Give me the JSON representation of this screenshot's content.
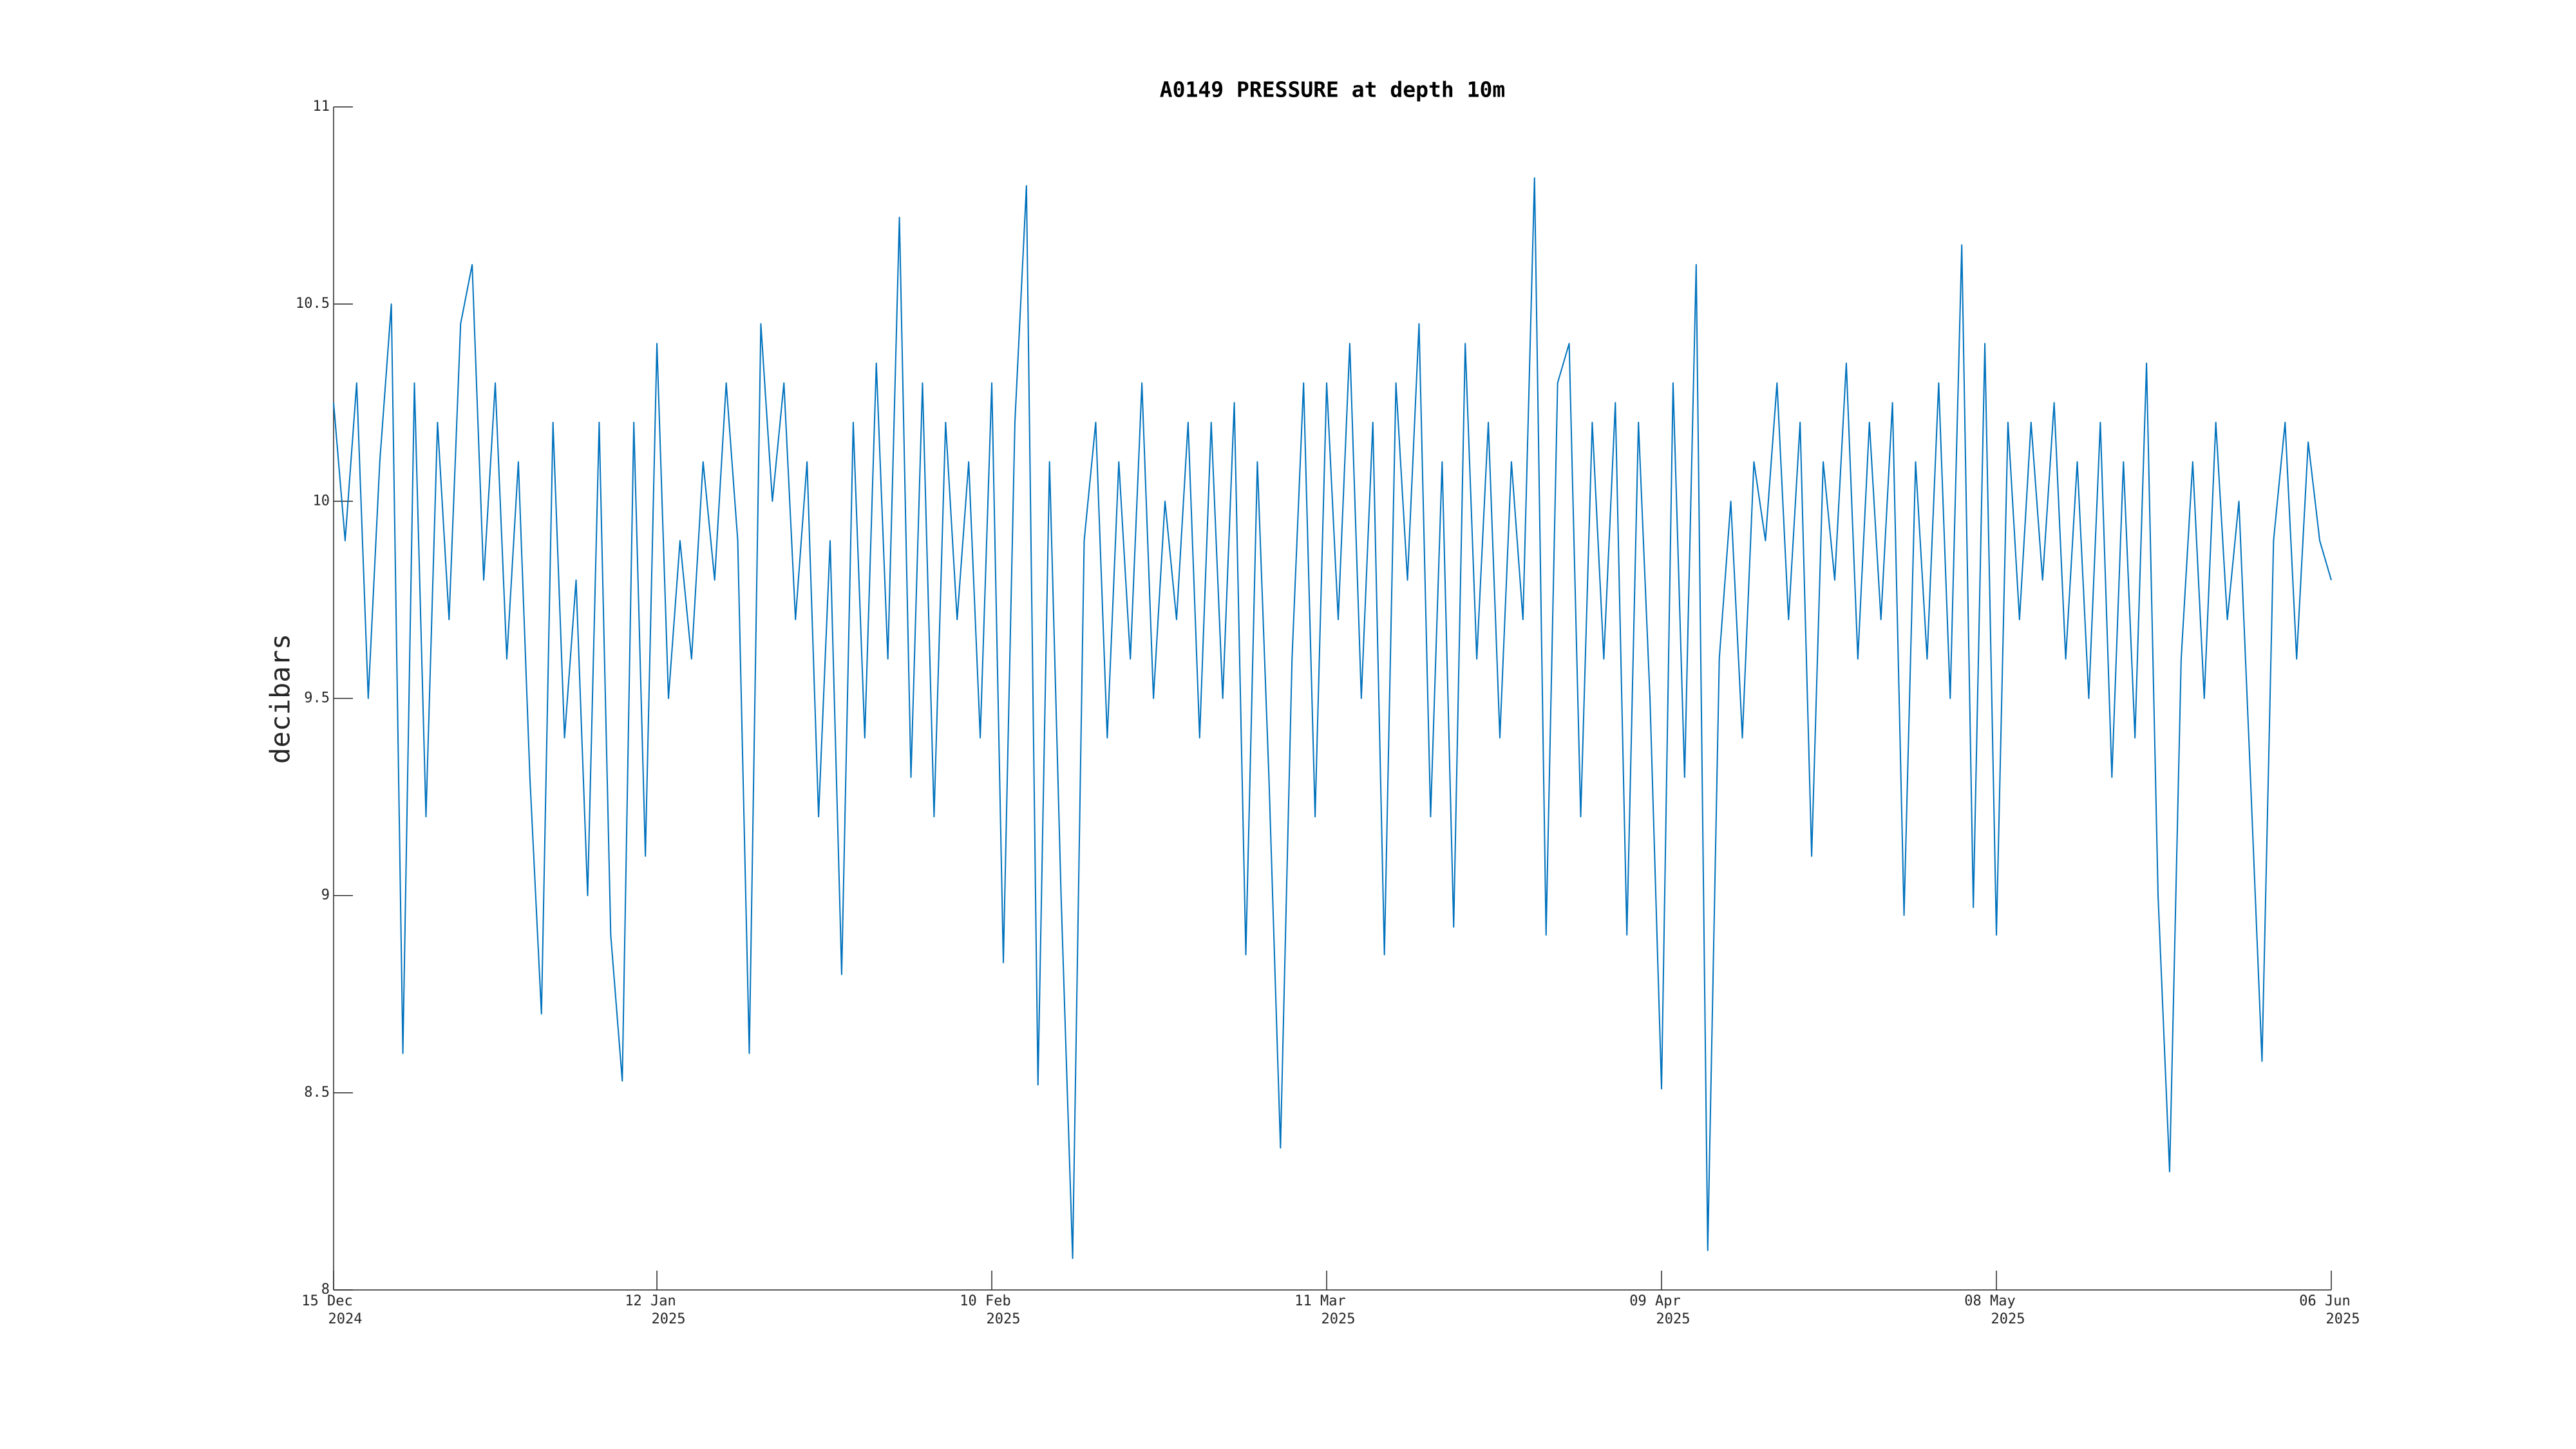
{
  "chart_data": {
    "type": "line",
    "title": "A0149 PRESSURE at depth 10m",
    "ylabel": "decibars",
    "color": "#0072bd",
    "xlim": [
      "2024-12-15",
      "2025-06-06"
    ],
    "xticks": [
      {
        "value": "2024-12-15",
        "label": [
          "15 Dec",
          "2024"
        ]
      },
      {
        "value": "2025-01-12",
        "label": [
          "12 Jan",
          "2025"
        ]
      },
      {
        "value": "2025-02-10",
        "label": [
          "10 Feb",
          "2025"
        ]
      },
      {
        "value": "2025-03-11",
        "label": [
          "11 Mar",
          "2025"
        ]
      },
      {
        "value": "2025-04-09",
        "label": [
          "09 Apr",
          "2025"
        ]
      },
      {
        "value": "2025-05-08",
        "label": [
          "08 May",
          "2025"
        ]
      },
      {
        "value": "2025-06-06",
        "label": [
          "06 Jun",
          "2025"
        ]
      }
    ],
    "ylim": [
      8,
      11
    ],
    "yticks": [
      8,
      8.5,
      9,
      9.5,
      10,
      10.5,
      11
    ],
    "x": [
      "2024-12-15",
      "2024-12-16",
      "2024-12-17",
      "2024-12-18",
      "2024-12-19",
      "2024-12-20",
      "2024-12-21",
      "2024-12-22",
      "2024-12-23",
      "2024-12-24",
      "2024-12-25",
      "2024-12-26",
      "2024-12-27",
      "2024-12-28",
      "2024-12-29",
      "2024-12-30",
      "2024-12-31",
      "2025-01-01",
      "2025-01-02",
      "2025-01-03",
      "2025-01-04",
      "2025-01-05",
      "2025-01-06",
      "2025-01-07",
      "2025-01-08",
      "2025-01-09",
      "2025-01-10",
      "2025-01-11",
      "2025-01-12",
      "2025-01-13",
      "2025-01-14",
      "2025-01-15",
      "2025-01-16",
      "2025-01-17",
      "2025-01-18",
      "2025-01-19",
      "2025-01-20",
      "2025-01-21",
      "2025-01-22",
      "2025-01-23",
      "2025-01-24",
      "2025-01-25",
      "2025-01-26",
      "2025-01-27",
      "2025-01-28",
      "2025-01-29",
      "2025-01-30",
      "2025-01-31",
      "2025-02-01",
      "2025-02-02",
      "2025-02-03",
      "2025-02-04",
      "2025-02-05",
      "2025-02-06",
      "2025-02-07",
      "2025-02-08",
      "2025-02-09",
      "2025-02-10",
      "2025-02-11",
      "2025-02-12",
      "2025-02-13",
      "2025-02-14",
      "2025-02-15",
      "2025-02-16",
      "2025-02-17",
      "2025-02-18",
      "2025-02-19",
      "2025-02-20",
      "2025-02-21",
      "2025-02-22",
      "2025-02-23",
      "2025-02-24",
      "2025-02-25",
      "2025-02-26",
      "2025-02-27",
      "2025-02-28",
      "2025-03-01",
      "2025-03-02",
      "2025-03-03",
      "2025-03-04",
      "2025-03-05",
      "2025-03-06",
      "2025-03-07",
      "2025-03-08",
      "2025-03-09",
      "2025-03-10",
      "2025-03-11",
      "2025-03-12",
      "2025-03-13",
      "2025-03-14",
      "2025-03-15",
      "2025-03-16",
      "2025-03-17",
      "2025-03-18",
      "2025-03-19",
      "2025-03-20",
      "2025-03-21",
      "2025-03-22",
      "2025-03-23",
      "2025-03-24",
      "2025-03-25",
      "2025-03-26",
      "2025-03-27",
      "2025-03-28",
      "2025-03-29",
      "2025-03-30",
      "2025-03-31",
      "2025-04-01",
      "2025-04-02",
      "2025-04-03",
      "2025-04-04",
      "2025-04-05",
      "2025-04-06",
      "2025-04-07",
      "2025-04-08",
      "2025-04-09",
      "2025-04-10",
      "2025-04-11",
      "2025-04-12",
      "2025-04-13",
      "2025-04-14",
      "2025-04-15",
      "2025-04-16",
      "2025-04-17",
      "2025-04-18",
      "2025-04-19",
      "2025-04-20",
      "2025-04-21",
      "2025-04-22",
      "2025-04-23",
      "2025-04-24",
      "2025-04-25",
      "2025-04-26",
      "2025-04-27",
      "2025-04-28",
      "2025-04-29",
      "2025-04-30",
      "2025-05-01",
      "2025-05-02",
      "2025-05-03",
      "2025-05-04",
      "2025-05-05",
      "2025-05-06",
      "2025-05-07",
      "2025-05-08",
      "2025-05-09",
      "2025-05-10",
      "2025-05-11",
      "2025-05-12",
      "2025-05-13",
      "2025-05-14",
      "2025-05-15",
      "2025-05-16",
      "2025-05-17",
      "2025-05-18",
      "2025-05-19",
      "2025-05-20",
      "2025-05-21",
      "2025-05-22",
      "2025-05-23",
      "2025-05-24",
      "2025-05-25",
      "2025-05-26",
      "2025-05-27",
      "2025-05-28",
      "2025-05-29",
      "2025-05-30",
      "2025-05-31",
      "2025-06-01",
      "2025-06-02",
      "2025-06-03",
      "2025-06-04",
      "2025-06-05",
      "2025-06-06"
    ],
    "values": [
      10.25,
      9.9,
      10.3,
      9.5,
      10.1,
      10.5,
      8.6,
      10.3,
      9.2,
      10.2,
      9.7,
      10.45,
      10.6,
      9.8,
      10.3,
      9.6,
      10.1,
      9.3,
      8.7,
      10.2,
      9.4,
      9.8,
      9.0,
      10.2,
      8.9,
      8.53,
      10.2,
      9.1,
      10.4,
      9.5,
      9.9,
      9.6,
      10.1,
      9.8,
      10.3,
      9.9,
      8.6,
      10.45,
      10.0,
      10.3,
      9.7,
      10.1,
      9.2,
      9.9,
      8.8,
      10.2,
      9.4,
      10.35,
      9.6,
      10.72,
      9.3,
      10.3,
      9.2,
      10.2,
      9.7,
      10.1,
      9.4,
      10.3,
      8.83,
      10.2,
      10.8,
      8.52,
      10.1,
      9.0,
      8.08,
      9.9,
      10.2,
      9.4,
      10.1,
      9.6,
      10.3,
      9.5,
      10.0,
      9.7,
      10.2,
      9.4,
      10.2,
      9.5,
      10.25,
      8.85,
      10.1,
      9.3,
      8.36,
      9.6,
      10.3,
      9.2,
      10.3,
      9.7,
      10.4,
      9.5,
      10.2,
      8.85,
      10.3,
      9.8,
      10.45,
      9.2,
      10.1,
      8.92,
      10.4,
      9.6,
      10.2,
      9.4,
      10.1,
      9.7,
      10.82,
      8.9,
      10.3,
      10.4,
      9.2,
      10.2,
      9.6,
      10.25,
      8.9,
      10.2,
      9.5,
      8.51,
      10.3,
      9.3,
      10.6,
      8.1,
      9.6,
      10.0,
      9.4,
      10.1,
      9.9,
      10.3,
      9.7,
      10.2,
      9.1,
      10.1,
      9.8,
      10.35,
      9.6,
      10.2,
      9.7,
      10.25,
      8.95,
      10.1,
      9.6,
      10.3,
      9.5,
      10.65,
      8.97,
      10.4,
      8.9,
      10.2,
      9.7,
      10.2,
      9.8,
      10.25,
      9.6,
      10.1,
      9.5,
      10.2,
      9.3,
      10.1,
      9.4,
      10.35,
      9.0,
      8.3,
      9.6,
      10.1,
      9.5,
      10.2,
      9.7,
      10.0,
      9.3,
      8.58,
      9.9,
      10.2,
      9.6,
      10.15,
      9.9,
      9.8
    ]
  }
}
